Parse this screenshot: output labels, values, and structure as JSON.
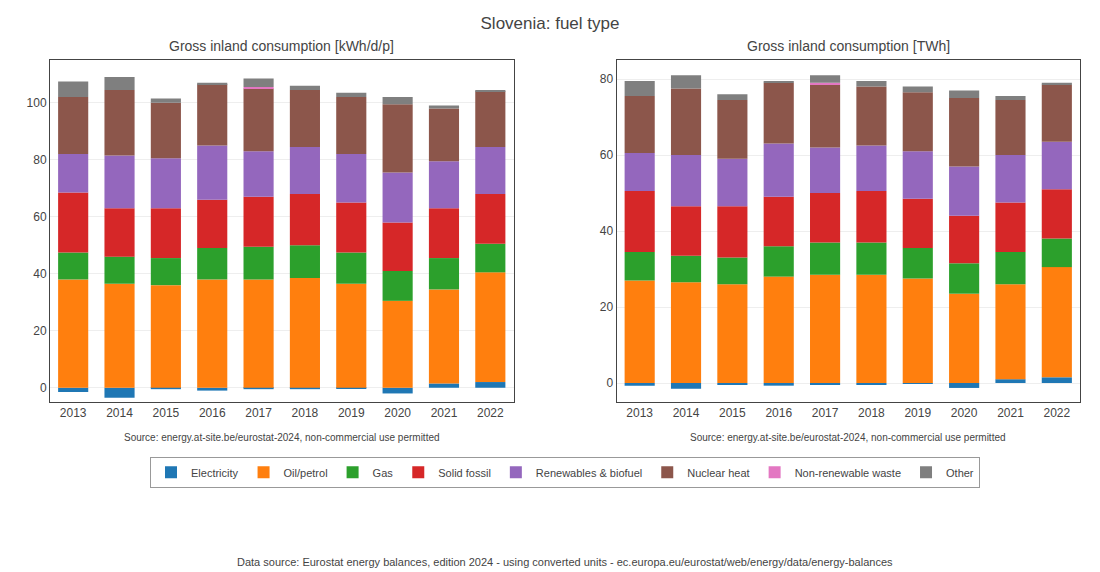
{
  "title": "Slovenia: fuel type",
  "annotations": [
    "Data source: Eurostat energy balances, edition 2024 - using converted units - ec.europa.eu/eurostat/web/energy/data/energy-balances"
  ],
  "chart_data": [
    {
      "type": "bar",
      "title": "Gross inland consumption [kWh/d/p]",
      "stacked": true,
      "grid": true,
      "legend": "bottom",
      "categories": [
        "2013",
        "2014",
        "2015",
        "2016",
        "2017",
        "2018",
        "2019",
        "2020",
        "2021",
        "2022"
      ],
      "series": [
        {
          "name": "Electricity",
          "color": "#1f77b4",
          "values": [
            -1.5,
            -3.5,
            -0.5,
            -1.0,
            -0.5,
            -0.5,
            -0.2,
            -2.0,
            1.5,
            2.0
          ]
        },
        {
          "name": "Oil/petrol",
          "color": "#ff7f0e",
          "values": [
            38.0,
            36.5,
            36.0,
            38.0,
            38.0,
            38.5,
            36.5,
            30.5,
            33.0,
            38.5
          ]
        },
        {
          "name": "Gas",
          "color": "#2ca02c",
          "values": [
            9.5,
            9.5,
            9.5,
            11.0,
            11.5,
            11.5,
            11.0,
            10.5,
            11.0,
            10.0
          ]
        },
        {
          "name": "Solid fossil",
          "color": "#d62728",
          "values": [
            21.0,
            17.0,
            17.5,
            17.0,
            17.5,
            18.0,
            17.5,
            17.0,
            17.5,
            17.5
          ]
        },
        {
          "name": "Renewables & biofuel",
          "color": "#9467bd",
          "values": [
            13.5,
            18.5,
            17.5,
            19.0,
            16.0,
            16.5,
            17.0,
            17.5,
            16.5,
            16.5
          ]
        },
        {
          "name": "Nuclear heat",
          "color": "#8c564b",
          "values": [
            20.0,
            23.0,
            19.5,
            21.5,
            22.0,
            20.0,
            20.0,
            24.0,
            18.5,
            19.5
          ]
        },
        {
          "name": "Non-renewable waste",
          "color": "#e377c2",
          "values": [
            0.0,
            0.0,
            0.0,
            0.0,
            0.5,
            0.0,
            0.0,
            0.0,
            0.0,
            0.0
          ]
        },
        {
          "name": "Other",
          "color": "#7f7f7f",
          "values": [
            5.5,
            4.5,
            1.5,
            0.5,
            3.0,
            1.5,
            1.5,
            2.5,
            1.0,
            0.5
          ]
        }
      ],
      "ylim": [
        -5,
        115
      ],
      "yticks": [
        0,
        20,
        40,
        60,
        80,
        100
      ],
      "annotations": [
        "Source: energy.at-site.be/eurostat-2024, non-commercial use permitted"
      ]
    },
    {
      "type": "bar",
      "title": "Gross inland consumption [TWh]",
      "stacked": true,
      "grid": true,
      "legend": "bottom",
      "categories": [
        "2013",
        "2014",
        "2015",
        "2016",
        "2017",
        "2018",
        "2019",
        "2020",
        "2021",
        "2022"
      ],
      "series": [
        {
          "name": "Electricity",
          "color": "#1f77b4",
          "values": [
            -0.7,
            -1.5,
            -0.3,
            -0.7,
            -0.3,
            -0.3,
            -0.2,
            -1.3,
            1.0,
            1.5
          ]
        },
        {
          "name": "Oil/petrol",
          "color": "#ff7f0e",
          "values": [
            27.0,
            26.5,
            26.0,
            28.0,
            28.5,
            28.5,
            27.5,
            23.5,
            25.0,
            29.0
          ]
        },
        {
          "name": "Gas",
          "color": "#2ca02c",
          "values": [
            7.5,
            7.0,
            7.0,
            8.0,
            8.5,
            8.5,
            8.0,
            8.0,
            8.5,
            7.5
          ]
        },
        {
          "name": "Solid fossil",
          "color": "#d62728",
          "values": [
            16.0,
            13.0,
            13.5,
            13.0,
            13.0,
            13.5,
            13.0,
            12.5,
            13.0,
            13.0
          ]
        },
        {
          "name": "Renewables & biofuel",
          "color": "#9467bd",
          "values": [
            10.0,
            13.5,
            12.5,
            14.0,
            12.0,
            12.0,
            12.5,
            13.0,
            12.5,
            12.5
          ]
        },
        {
          "name": "Nuclear heat",
          "color": "#8c564b",
          "values": [
            15.0,
            17.5,
            15.5,
            16.0,
            16.5,
            15.5,
            15.5,
            18.0,
            14.5,
            15.0
          ]
        },
        {
          "name": "Non-renewable waste",
          "color": "#e377c2",
          "values": [
            0.0,
            0.0,
            0.0,
            0.0,
            0.5,
            0.0,
            0.0,
            0.0,
            0.0,
            0.0
          ]
        },
        {
          "name": "Other",
          "color": "#7f7f7f",
          "values": [
            4.0,
            3.5,
            1.5,
            0.5,
            2.0,
            1.5,
            1.5,
            2.0,
            1.0,
            0.5
          ]
        }
      ],
      "ylim": [
        -5,
        85
      ],
      "yticks": [
        0,
        20,
        40,
        60,
        80
      ],
      "annotations": [
        "Source: energy.at-site.be/eurostat-2024, non-commercial use permitted"
      ]
    }
  ]
}
